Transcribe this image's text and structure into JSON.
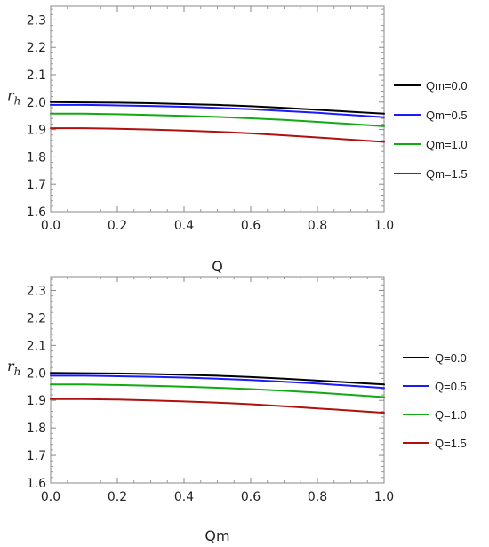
{
  "chart_data": [
    {
      "type": "line",
      "title": "",
      "xlabel": "Q",
      "ylabel": "r",
      "ylabel_sub": "h",
      "xlim": [
        0.0,
        1.0
      ],
      "ylim": [
        1.6,
        2.35
      ],
      "xticks": [
        "0.0",
        "0.2",
        "0.4",
        "0.6",
        "0.8",
        "1.0"
      ],
      "yticks": [
        "1.6",
        "1.7",
        "1.8",
        "1.9",
        "2.0",
        "2.1",
        "2.2",
        "2.3"
      ],
      "grid": false,
      "legend_position": "right",
      "x": [
        0.0,
        0.1,
        0.2,
        0.3,
        0.4,
        0.5,
        0.6,
        0.7,
        0.8,
        0.9,
        1.0
      ],
      "series": [
        {
          "name": "Qm=0.0",
          "color": "#000000",
          "values": [
            2.0,
            1.999,
            1.998,
            1.996,
            1.993,
            1.99,
            1.985,
            1.979,
            1.972,
            1.965,
            1.958
          ]
        },
        {
          "name": "Qm=0.5",
          "color": "#1a1aff",
          "values": [
            1.99,
            1.99,
            1.988,
            1.986,
            1.983,
            1.979,
            1.974,
            1.968,
            1.961,
            1.953,
            1.945
          ]
        },
        {
          "name": "Qm=1.0",
          "color": "#11aa11",
          "values": [
            1.958,
            1.958,
            1.956,
            1.953,
            1.95,
            1.946,
            1.941,
            1.935,
            1.928,
            1.92,
            1.912
          ]
        },
        {
          "name": "Qm=1.5",
          "color": "#b01010",
          "values": [
            1.905,
            1.905,
            1.903,
            1.9,
            1.896,
            1.892,
            1.886,
            1.879,
            1.871,
            1.863,
            1.855
          ]
        }
      ]
    },
    {
      "type": "line",
      "title": "",
      "xlabel": "Qm",
      "ylabel": "r",
      "ylabel_sub": "h",
      "xlim": [
        0.0,
        1.0
      ],
      "ylim": [
        1.6,
        2.35
      ],
      "xticks": [
        "0.0",
        "0.2",
        "0.4",
        "0.6",
        "0.8",
        "1.0"
      ],
      "yticks": [
        "1.6",
        "1.7",
        "1.8",
        "1.9",
        "2.0",
        "2.1",
        "2.2",
        "2.3"
      ],
      "grid": false,
      "legend_position": "right",
      "x": [
        0.0,
        0.1,
        0.2,
        0.3,
        0.4,
        0.5,
        0.6,
        0.7,
        0.8,
        0.9,
        1.0
      ],
      "series": [
        {
          "name": "Q=0.0",
          "color": "#000000",
          "values": [
            2.0,
            1.999,
            1.998,
            1.996,
            1.993,
            1.99,
            1.985,
            1.979,
            1.972,
            1.965,
            1.958
          ]
        },
        {
          "name": "Q=0.5",
          "color": "#1a1aff",
          "values": [
            1.99,
            1.99,
            1.988,
            1.986,
            1.983,
            1.979,
            1.974,
            1.968,
            1.961,
            1.953,
            1.945
          ]
        },
        {
          "name": "Q=1.0",
          "color": "#11aa11",
          "values": [
            1.958,
            1.958,
            1.956,
            1.953,
            1.95,
            1.946,
            1.941,
            1.935,
            1.928,
            1.92,
            1.912
          ]
        },
        {
          "name": "Q=1.5",
          "color": "#b01010",
          "values": [
            1.905,
            1.905,
            1.903,
            1.9,
            1.896,
            1.892,
            1.886,
            1.879,
            1.871,
            1.863,
            1.855
          ]
        }
      ]
    }
  ]
}
